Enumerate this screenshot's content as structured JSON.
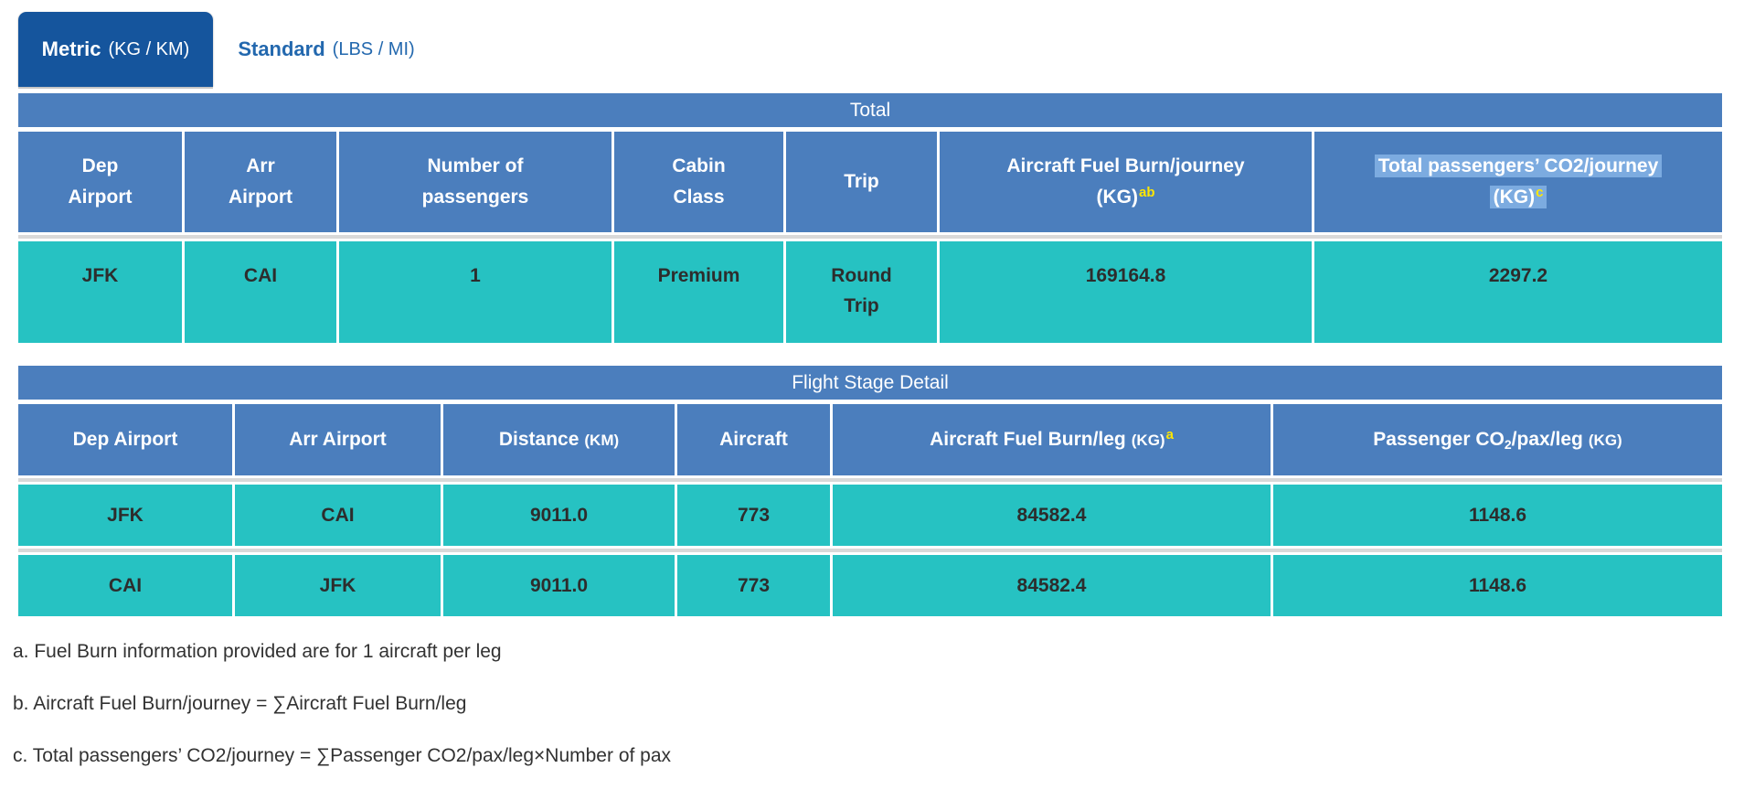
{
  "tabs": {
    "metric": {
      "label": "Metric",
      "unit": "(KG / KM)"
    },
    "standard": {
      "label": "Standard",
      "unit": "(LBS / MI)"
    }
  },
  "total_table": {
    "title": "Total",
    "col1_l1": "Dep",
    "col1_l2": "Airport",
    "col2_l1": "Arr",
    "col2_l2": "Airport",
    "col3_l1": "Number of",
    "col3_l2": "passengers",
    "col4_l1": "Cabin",
    "col4_l2": "Class",
    "col5": "Trip",
    "col6_l1": "Aircraft Fuel Burn/journey",
    "col6_l2": "(KG)",
    "col6_sup": "ab",
    "col7_l1": "Total passengers’ CO2/journey",
    "col7_l2": "(KG)",
    "col7_sup": "c",
    "row": [
      "JFK",
      "CAI",
      "1",
      "Premium",
      "Round Trip",
      "169164.8",
      "2297.2"
    ]
  },
  "stage_table": {
    "title": "Flight Stage Detail",
    "col1": "Dep Airport",
    "col2": "Arr Airport",
    "col3_label": "Distance",
    "col3_unit": "(KM)",
    "col4": "Aircraft",
    "col5_label": "Aircraft Fuel Burn/leg",
    "col5_unit": "(KG)",
    "col5_sup": "a",
    "col6_pre": "Passenger CO",
    "col6_sub": "2",
    "col6_post": "/pax/leg",
    "col6_unit": "(KG)",
    "rows": [
      [
        "JFK",
        "CAI",
        "9011.0",
        "773",
        "84582.4",
        "1148.6"
      ],
      [
        "CAI",
        "JFK",
        "9011.0",
        "773",
        "84582.4",
        "1148.6"
      ]
    ]
  },
  "footnotes": [
    "a. Fuel Burn information provided are for 1 aircraft per leg",
    "b. Aircraft Fuel Burn/journey = ∑Aircraft Fuel Burn/leg",
    "c. Total passengers’ CO2/journey = ∑Passenger CO2/pax/leg×Number of pax"
  ],
  "colors": {
    "active_tab_blue": "#15559d",
    "inactive_tab_link_blue": "#2368ae",
    "table_header_blue": "#4b7ebd",
    "data_row_teal": "#26c2c2",
    "selection_highlight_blue": "#7cabe0",
    "superscript_yellow": "#ffe600",
    "row_divider_gray": "#d9d9d9"
  }
}
